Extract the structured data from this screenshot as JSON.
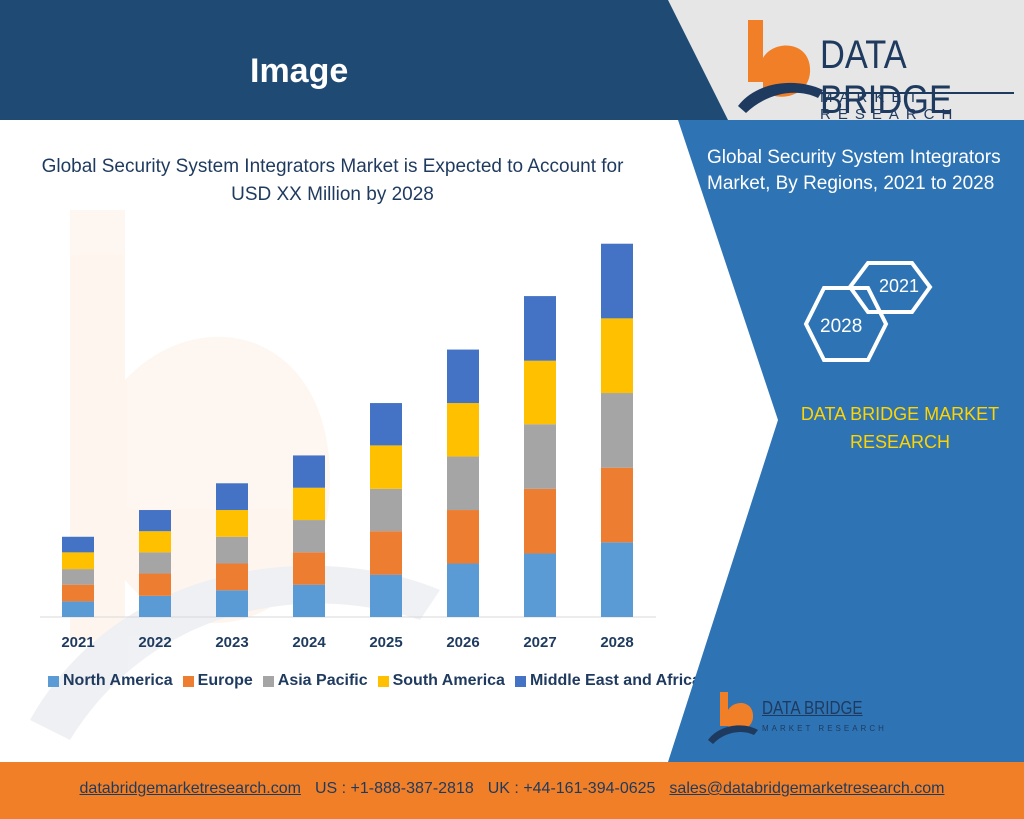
{
  "header": {
    "title": "Image"
  },
  "logo": {
    "brand": "DATA BRIDGE",
    "tagline": "MARKET RESEARCH"
  },
  "panel": {
    "title": "Global Security System Integrators Market,  By Regions, 2021 to 2028",
    "hex_start": "2021",
    "hex_end": "2028",
    "brand_text": "DATA BRIDGE MARKET RESEARCH",
    "logo_brand": "DATA BRIDGE",
    "logo_tagline": "MARKET RESEARCH"
  },
  "colors": {
    "header_bg": "#1f4a73",
    "panel_bg": "#2e74b5",
    "footer_bg": "#f07f27",
    "accent_yellow": "#ffd400",
    "text_navy": "#1f3a5f"
  },
  "chart_data": {
    "type": "bar",
    "stacked": true,
    "title": "Global Security System Integrators Market is Expected to Account for USD XX Million by 2028",
    "categories": [
      "2021",
      "2022",
      "2023",
      "2024",
      "2025",
      "2026",
      "2027",
      "2028"
    ],
    "series": [
      {
        "name": "North America",
        "color": "#5b9bd5",
        "values": [
          14,
          19,
          24,
          29,
          38,
          48,
          57,
          67
        ]
      },
      {
        "name": "Europe",
        "color": "#ed7d31",
        "values": [
          15,
          20,
          24,
          29,
          39,
          48,
          58,
          67
        ]
      },
      {
        "name": "Asia Pacific",
        "color": "#a5a5a5",
        "values": [
          14,
          19,
          24,
          29,
          38,
          48,
          58,
          67
        ]
      },
      {
        "name": "South America",
        "color": "#ffc000",
        "values": [
          15,
          19,
          24,
          29,
          39,
          48,
          57,
          67
        ]
      },
      {
        "name": "Middle East and Africa",
        "color": "#4472c4",
        "values": [
          14,
          19,
          24,
          29,
          38,
          48,
          58,
          67
        ]
      }
    ],
    "ylim": [
      0,
      350
    ],
    "legend_position": "bottom",
    "grid": false
  },
  "footer": {
    "website": "databridgemarketresearch.com",
    "us_phone": "US : +1-888-387-2818",
    "uk_phone": "UK : +44-161-394-0625",
    "email": "sales@databridgemarketresearch.com"
  }
}
